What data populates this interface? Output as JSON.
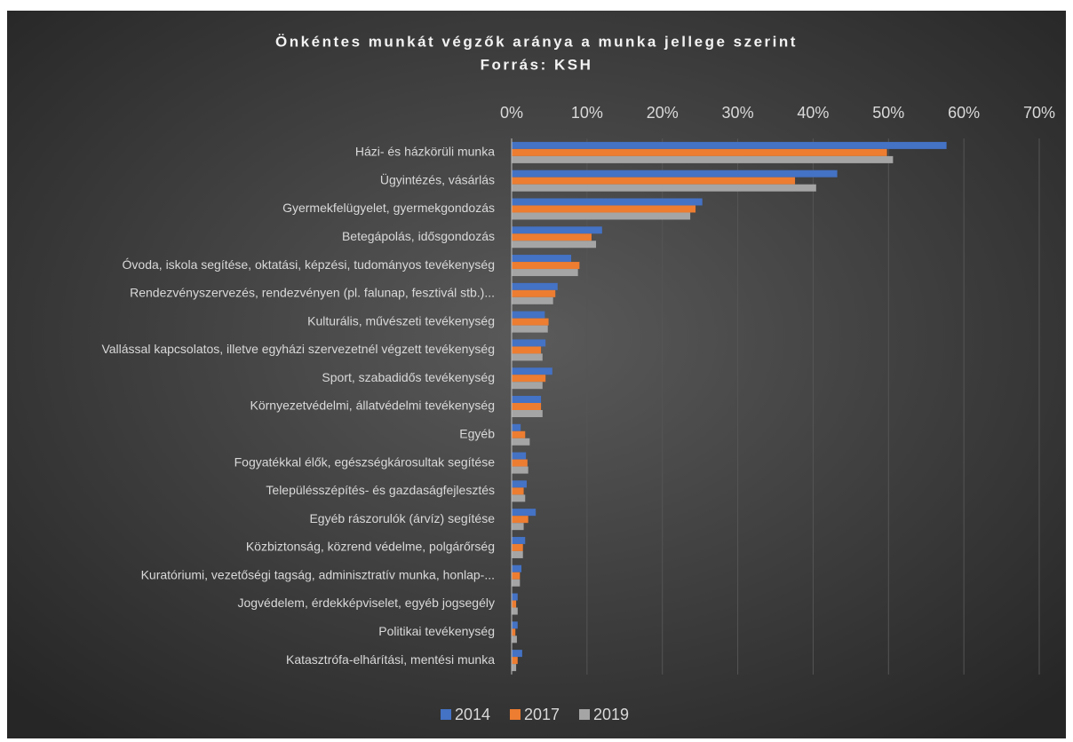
{
  "chart_data": {
    "type": "bar",
    "orientation": "horizontal",
    "title": "Önkéntes munkát végzők aránya a munka jellege szerint",
    "subtitle": "Forrás: KSH",
    "categories": [
      "Házi- és házkörüli munka",
      "Ügyintézés, vásárlás",
      "Gyermekfelügyelet, gyermekgondozás",
      "Betegápolás, idősgondozás",
      "Óvoda, iskola segítése, oktatási, képzési, tudományos tevékenység",
      "Rendezvényszervezés, rendezvényen (pl. falunap, fesztivál stb.)...",
      "Kulturális, művészeti tevékenység",
      "Vallással kapcsolatos, illetve egyházi szervezetnél végzett tevékenység",
      "Sport, szabadidős tevékenység",
      "Környezetvédelmi, állatvédelmi tevékenység",
      "Egyéb",
      "Fogyatékkal élők, egészségkárosultak segítése",
      "Településszépítés- és gazdaságfejlesztés",
      "Egyéb rászorulók (árvíz) segítése",
      "Közbiztonság, közrend védelme, polgárőrség",
      "Kuratóriumi, vezetőségi tagság, adminisztratív munka, honlap-...",
      "Jogvédelem, érdekképviselet, egyéb jogsegély",
      "Politikai tevékenység",
      "Katasztrófa-elhárítási, mentési munka"
    ],
    "series": [
      {
        "name": "2014",
        "color": "#4472c4",
        "values": [
          57.7,
          43.2,
          25.3,
          12.0,
          7.9,
          6.1,
          4.4,
          4.5,
          5.4,
          3.9,
          1.2,
          1.9,
          2.0,
          3.2,
          1.8,
          1.3,
          0.8,
          0.8,
          1.4
        ]
      },
      {
        "name": "2017",
        "color": "#ed7d31",
        "values": [
          49.8,
          37.6,
          24.4,
          10.6,
          9.0,
          5.8,
          4.9,
          3.9,
          4.5,
          3.9,
          1.8,
          2.1,
          1.6,
          2.2,
          1.5,
          1.1,
          0.6,
          0.5,
          0.8
        ]
      },
      {
        "name": "2019",
        "color": "#a5a5a5",
        "values": [
          50.6,
          40.4,
          23.7,
          11.2,
          8.8,
          5.5,
          4.8,
          4.1,
          4.1,
          4.1,
          2.4,
          2.2,
          1.8,
          1.6,
          1.5,
          1.1,
          0.8,
          0.7,
          0.6
        ]
      }
    ],
    "xlim": [
      0,
      70
    ],
    "xticks": [
      {
        "value": 0,
        "label": "0%"
      },
      {
        "value": 10,
        "label": "10%"
      },
      {
        "value": 20,
        "label": "20%"
      },
      {
        "value": 30,
        "label": "30%"
      },
      {
        "value": 40,
        "label": "40%"
      },
      {
        "value": 50,
        "label": "50%"
      },
      {
        "value": 60,
        "label": "60%"
      },
      {
        "value": 70,
        "label": "70%"
      }
    ],
    "grid": true,
    "legend": "bottom"
  }
}
